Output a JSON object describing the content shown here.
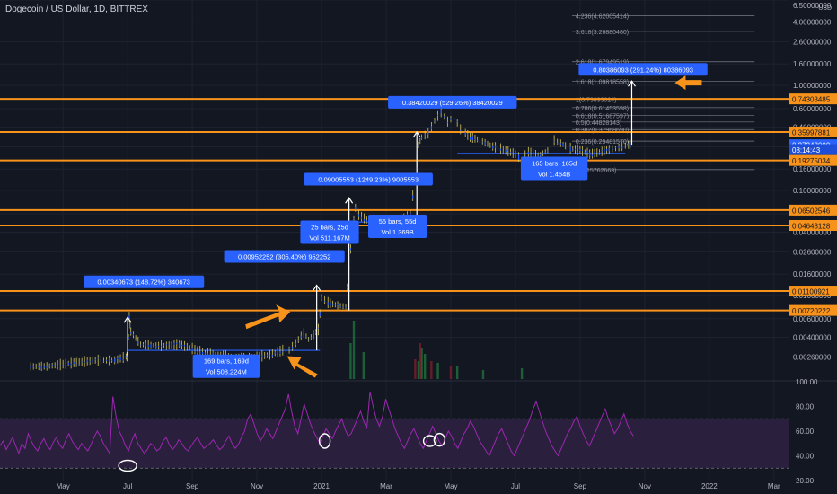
{
  "header": {
    "title": "Dogecoin / US Dollar, 1D, BITTREX",
    "currency": "USD"
  },
  "colors": {
    "background": "#131722",
    "grid": "#1e2230",
    "axis_text": "#b2b5be",
    "orange": "#f7931a",
    "candle_up": "#2962ff",
    "candle_wick": "#d6c85a",
    "label_bg": "#2962ff",
    "rsi": "#9c27b0",
    "rsi_band": "#2a1f3d",
    "white": "#ffffff"
  },
  "chart_data": {
    "type": "candlestick",
    "title": "Dogecoin / US Dollar, 1D, BITTREX",
    "y_scale": "log",
    "y_range": [
      0.0016,
      6.5
    ],
    "x_range_months": [
      0,
      23
    ],
    "y_ticks": [
      "6.50000000",
      "4.00000000",
      "2.60000000",
      "1.60000000",
      "1.00000000",
      "0.60000000",
      "0.40000000",
      "0.26000000",
      "0.16000000",
      "0.10000000",
      "0.06000000",
      "0.04000000",
      "0.02600000",
      "0.01600000",
      "0.01000000",
      "0.00600000",
      "0.00400000",
      "0.00260000"
    ],
    "x_ticks": [
      {
        "label": "May",
        "m": 1
      },
      {
        "label": "Jul",
        "m": 3
      },
      {
        "label": "Sep",
        "m": 5
      },
      {
        "label": "Nov",
        "m": 7
      },
      {
        "label": "2021",
        "m": 9
      },
      {
        "label": "Mar",
        "m": 11
      },
      {
        "label": "May",
        "m": 13
      },
      {
        "label": "Jul",
        "m": 15
      },
      {
        "label": "Sep",
        "m": 17
      },
      {
        "label": "Nov",
        "m": 19
      },
      {
        "label": "2022",
        "m": 21
      },
      {
        "label": "Mar",
        "m": 23
      }
    ],
    "price_series": [
      [
        0,
        0.0021
      ],
      [
        0.5,
        0.0021
      ],
      [
        1,
        0.0022
      ],
      [
        1.5,
        0.0023
      ],
      [
        2,
        0.0024
      ],
      [
        2.6,
        0.0024
      ],
      [
        2.95,
        0.0026
      ],
      [
        3.0,
        0.0026
      ],
      [
        3.05,
        0.0062
      ],
      [
        3.1,
        0.0045
      ],
      [
        3.4,
        0.0034
      ],
      [
        3.8,
        0.0033
      ],
      [
        4.2,
        0.0033
      ],
      [
        4.6,
        0.0034
      ],
      [
        5.0,
        0.0031
      ],
      [
        5.4,
        0.0028
      ],
      [
        5.8,
        0.0027
      ],
      [
        6.2,
        0.0026
      ],
      [
        6.6,
        0.0025
      ],
      [
        7.0,
        0.0026
      ],
      [
        7.4,
        0.0027
      ],
      [
        7.8,
        0.003
      ],
      [
        8.0,
        0.003
      ],
      [
        8.2,
        0.0035
      ],
      [
        8.45,
        0.0044
      ],
      [
        8.6,
        0.0038
      ],
      [
        8.9,
        0.0047
      ],
      [
        9.0,
        0.0095
      ],
      [
        9.2,
        0.0085
      ],
      [
        9.5,
        0.008
      ],
      [
        9.75,
        0.0078
      ],
      [
        9.85,
        0.018
      ],
      [
        9.95,
        0.042
      ],
      [
        10.05,
        0.068
      ],
      [
        10.15,
        0.058
      ],
      [
        10.4,
        0.052
      ],
      [
        10.7,
        0.05
      ],
      [
        11.0,
        0.051
      ],
      [
        11.3,
        0.053
      ],
      [
        11.55,
        0.056
      ],
      [
        11.75,
        0.06
      ],
      [
        11.9,
        0.13
      ],
      [
        12.0,
        0.27
      ],
      [
        12.1,
        0.32
      ],
      [
        12.3,
        0.35
      ],
      [
        12.5,
        0.46
      ],
      [
        12.7,
        0.56
      ],
      [
        12.9,
        0.45
      ],
      [
        13.1,
        0.5
      ],
      [
        13.3,
        0.38
      ],
      [
        13.6,
        0.32
      ],
      [
        13.9,
        0.3
      ],
      [
        14.3,
        0.26
      ],
      [
        14.7,
        0.24
      ],
      [
        15.0,
        0.22
      ],
      [
        15.2,
        0.195
      ],
      [
        15.4,
        0.23
      ],
      [
        15.7,
        0.21
      ],
      [
        16.0,
        0.24
      ],
      [
        16.2,
        0.3
      ],
      [
        16.4,
        0.28
      ],
      [
        16.7,
        0.25
      ],
      [
        17.0,
        0.24
      ],
      [
        17.3,
        0.22
      ],
      [
        17.6,
        0.23
      ],
      [
        17.9,
        0.245
      ],
      [
        18.1,
        0.25
      ],
      [
        18.3,
        0.26
      ],
      [
        18.5,
        0.27
      ],
      [
        18.6,
        0.2724
      ]
    ],
    "price_axis_labels": [
      {
        "value": "0.74303485",
        "price": 0.743,
        "style": "orange"
      },
      {
        "value": "0.35997881",
        "price": 0.36,
        "style": "orange"
      },
      {
        "value": "0.27243000",
        "price": 0.2724,
        "style": "blue"
      },
      {
        "value": "08:14:43",
        "price": 0.245,
        "style": "blue_dark"
      },
      {
        "value": "0.19275034",
        "price": 0.1928,
        "style": "orange"
      },
      {
        "value": "0.06502546",
        "price": 0.065,
        "style": "orange"
      },
      {
        "value": "0.04643128",
        "price": 0.0464,
        "style": "orange"
      },
      {
        "value": "0.01100921",
        "price": 0.01101,
        "style": "orange"
      },
      {
        "value": "0.00720222",
        "price": 0.0072,
        "style": "orange"
      }
    ],
    "horizontal_levels": [
      0.743,
      0.36,
      0.1928,
      0.065,
      0.0464,
      0.01101,
      0.0072
    ],
    "fib_levels": [
      {
        "label": "4.236(4.62005414)",
        "price": 4.62
      },
      {
        "label": "3.618(3.26880480)",
        "price": 3.27
      },
      {
        "label": "2.618(1.67949519)",
        "price": 1.679
      },
      {
        "label": "1.618(1.09818558)",
        "price": 1.098
      },
      {
        "label": "1(0.73893624)",
        "price": 0.739
      },
      {
        "label": "0.786(0.61453598)",
        "price": 0.6145
      },
      {
        "label": "0.618(0.51687597)",
        "price": 0.5169
      },
      {
        "label": "0.5(0.44828143)",
        "price": 0.4483
      },
      {
        "label": "0.382(0.37968690)",
        "price": 0.3797
      },
      {
        "label": "0.236(0.29481570)",
        "price": 0.2948
      },
      {
        "label": "0(0.15762663)",
        "price": 0.1576
      }
    ],
    "annotations": [
      {
        "text": "0.00340673 (148.72%) 340673",
        "m": 3.5,
        "price": 0.0135
      },
      {
        "text": "169 bars, 169d",
        "m": 6.05,
        "price": 0.00212,
        "text2": "Vol 508.224M"
      },
      {
        "text": "0.00952252 (305.40%) 952252",
        "m": 7.85,
        "price": 0.0235
      },
      {
        "text": "25 bars, 25d",
        "m": 9.25,
        "price": 0.04,
        "text2": "Vol 511.167M"
      },
      {
        "text": "0.09005553 (1249.23%) 9005553",
        "m": 10.45,
        "price": 0.128
      },
      {
        "text": "55 bars, 55d",
        "m": 11.35,
        "price": 0.0455,
        "text2": "Vol 1.369B"
      },
      {
        "text": "0.38420029 (529.26%) 38420029",
        "m": 13.05,
        "price": 0.69
      },
      {
        "text": "165 bars, 165d",
        "m": 16.2,
        "price": 0.162,
        "text2": "Vol 1.464B"
      },
      {
        "text": "0.80386093 (291.24%) 80386093",
        "m": 18.95,
        "price": 1.42
      }
    ],
    "rsi": {
      "upper": "100.00",
      "lower": "20.00",
      "tick_labels": [
        "100.00",
        "80.00",
        "60.00",
        "40.00",
        "20.00"
      ],
      "upper_band": 70,
      "lower_band": 30,
      "values": [
        48,
        52,
        45,
        50,
        55,
        48,
        42,
        50,
        46,
        58,
        52,
        47,
        44,
        50,
        54,
        48,
        45,
        51,
        55,
        49,
        46,
        53,
        58,
        52,
        48,
        45,
        50,
        47,
        44,
        49,
        55,
        60,
        56,
        50,
        46,
        42,
        88,
        72,
        60,
        55,
        48,
        44,
        52,
        58,
        50,
        46,
        42,
        45,
        50,
        48,
        44,
        46,
        52,
        55,
        49,
        45,
        48,
        53,
        50,
        46,
        44,
        48,
        52,
        55,
        50,
        46,
        48,
        50,
        53,
        49,
        45,
        47,
        52,
        56,
        50,
        46,
        49,
        55,
        60,
        70,
        74,
        66,
        58,
        52,
        56,
        62,
        58,
        54,
        60,
        66,
        72,
        78,
        90,
        76,
        64,
        58,
        70,
        82,
        74,
        66,
        60,
        55,
        50,
        56,
        62,
        58,
        54,
        60,
        65,
        70,
        62,
        56,
        58,
        64,
        70,
        76,
        68,
        62,
        92,
        80,
        70,
        64,
        72,
        86,
        78,
        70,
        62,
        56,
        50,
        46,
        52,
        58,
        62,
        56,
        50,
        46,
        52,
        58,
        64,
        58,
        52,
        48,
        54,
        60,
        56,
        50,
        46,
        52,
        58,
        62,
        68,
        64,
        58,
        52,
        48,
        44,
        40,
        46,
        52,
        58,
        62,
        56,
        50,
        44,
        40,
        46,
        52,
        58,
        64,
        70,
        78,
        84,
        76,
        68,
        60,
        54,
        48,
        44,
        40,
        46,
        52,
        58,
        62,
        68,
        72,
        64,
        58,
        52,
        48,
        54,
        60,
        66,
        72,
        78,
        70,
        64,
        58,
        62,
        68,
        74,
        66,
        60,
        56
      ]
    }
  }
}
